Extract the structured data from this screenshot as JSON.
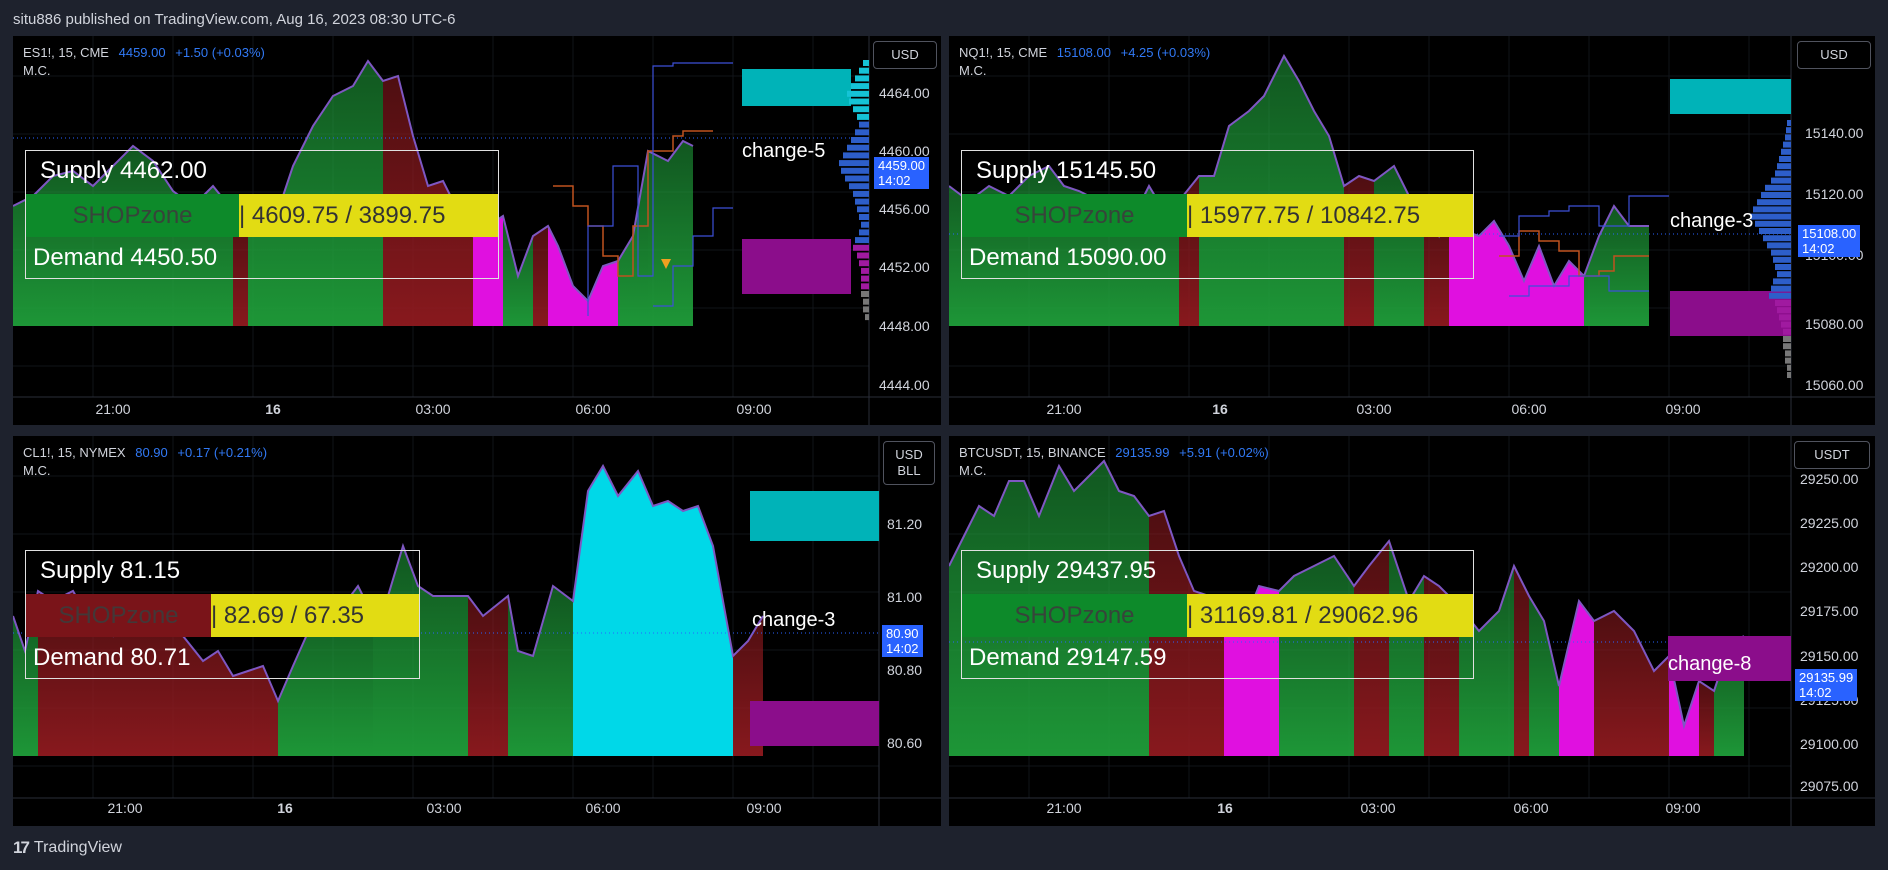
{
  "header": {
    "published": "situ886 published on TradingView.com, Aug 16, 2023 08:30 UTC-6"
  },
  "footer": {
    "brand": "TradingView",
    "brand_mark": "17"
  },
  "panels": [
    {
      "symbol": "ES1!, 15, CME",
      "price": "4459.00",
      "change": "+1.50 (+0.03%)",
      "indicator": "M.C.",
      "currency": "USD",
      "currency2": "",
      "price_labels": [
        "4464.00",
        "4460.00",
        "4456.00",
        "4452.00",
        "4448.00",
        "4444.00"
      ],
      "current_price": "4459.00",
      "countdown": "14:02",
      "time_labels": [
        "21:00",
        "16",
        "03:00",
        "06:00",
        "09:00"
      ],
      "change_label": "change-5",
      "supply": "Supply  4462.00",
      "demand": "Demand  4450.50",
      "zone": "SHOPzone",
      "ratio": "|   4609.75  /  3899.75"
    },
    {
      "symbol": "NQ1!, 15, CME",
      "price": "15108.00",
      "change": "+4.25 (+0.03%)",
      "indicator": "M.C.",
      "currency": "USD",
      "currency2": "",
      "price_labels": [
        "15140.00",
        "15120.00",
        "15100.00",
        "15080.00",
        "15060.00"
      ],
      "current_price": "15108.00",
      "countdown": "14:02",
      "time_labels": [
        "21:00",
        "16",
        "03:00",
        "06:00",
        "09:00"
      ],
      "change_label": "change-3",
      "supply": "Supply  15145.50",
      "demand": "Demand  15090.00",
      "zone": "SHOPzone",
      "ratio": "|   15977.75  /  10842.75"
    },
    {
      "symbol": "CL1!, 15, NYMEX",
      "price": "80.90",
      "change": "+0.17 (+0.21%)",
      "indicator": "M.C.",
      "currency": "USD",
      "currency2": "BLL",
      "price_labels": [
        "81.20",
        "81.00",
        "80.80",
        "80.60"
      ],
      "current_price": "80.90",
      "countdown": "14:02",
      "time_labels": [
        "21:00",
        "16",
        "03:00",
        "06:00",
        "09:00"
      ],
      "change_label": "change-3",
      "supply": "Supply  81.15",
      "demand": "Demand  80.71",
      "zone": "SHOPzone",
      "ratio": "|   82.69  /  67.35"
    },
    {
      "symbol": "BTCUSDT, 15, BINANCE",
      "price": "29135.99",
      "change": "+5.91 (+0.02%)",
      "indicator": "M.C.",
      "currency": "USDT",
      "currency2": "",
      "price_labels": [
        "29250.00",
        "29225.00",
        "29200.00",
        "29175.00",
        "29150.00",
        "29125.00",
        "29100.00",
        "29075.00"
      ],
      "current_price": "29135.99",
      "countdown": "14:02",
      "time_labels": [
        "21:00",
        "16",
        "03:00",
        "06:00",
        "09:00"
      ],
      "change_label": "change-8",
      "supply": "Supply  29437.95",
      "demand": "Demand  29147.59",
      "zone": "SHOPzone",
      "ratio": "|   31169.81  /  29062.96"
    }
  ],
  "colors": {
    "bull": "#1f9e3a",
    "bear": "#8f1a1f",
    "magenta": "#e010e0",
    "cyan": "#00d8e8",
    "line": "#7e57c2",
    "price_tag": "#2962ff",
    "ratio_bg": "#e2dc13",
    "supply_box": "#00b3b8",
    "demand_box": "#8b0d8b"
  }
}
